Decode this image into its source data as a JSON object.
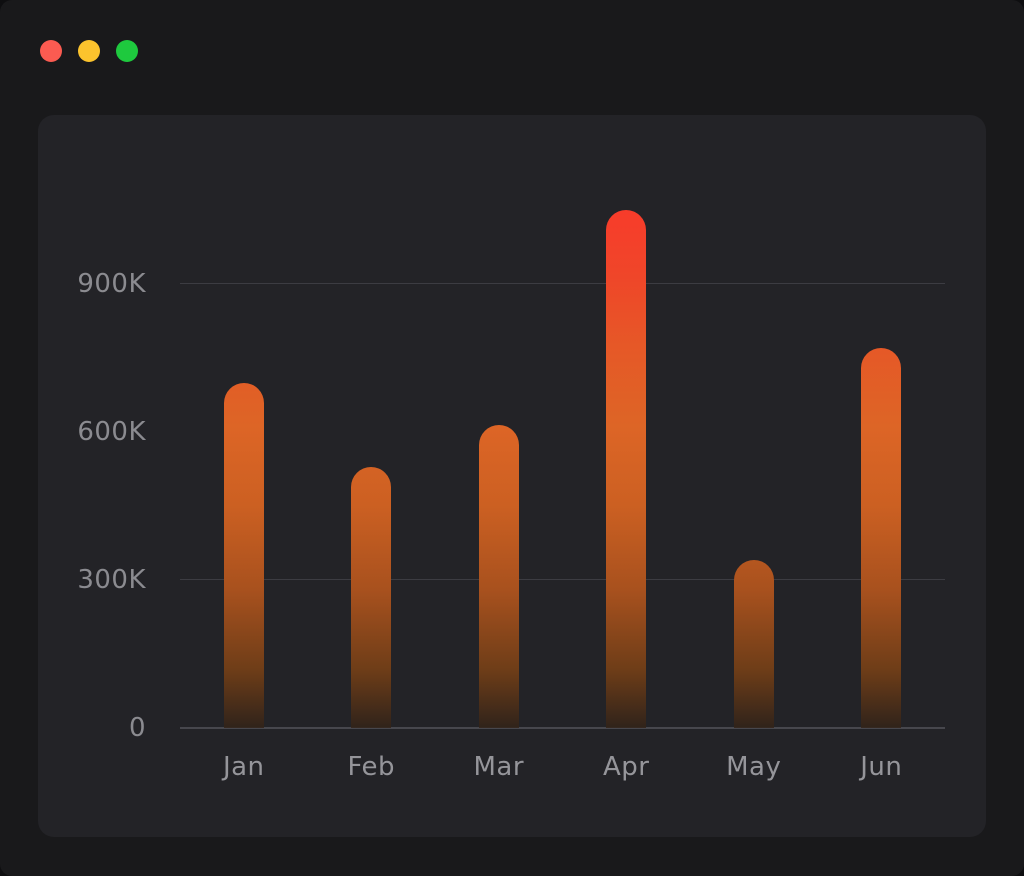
{
  "window": {
    "controls": [
      {
        "name": "close",
        "color": "#fb5b51"
      },
      {
        "name": "minimize",
        "color": "#fcc32d"
      },
      {
        "name": "zoom",
        "color": "#1ec93e"
      }
    ]
  },
  "chart_data": {
    "type": "bar",
    "title": "",
    "xlabel": "",
    "ylabel": "",
    "categories": [
      "Jan",
      "Feb",
      "Mar",
      "Apr",
      "May",
      "Jun"
    ],
    "values": [
      700000,
      530000,
      615000,
      1050000,
      340000,
      770000
    ],
    "y_axis": {
      "ticks": [
        {
          "label": "0",
          "value": 0
        },
        {
          "label": "300K",
          "value": 300000
        },
        {
          "label": "600K",
          "value": 600000
        },
        {
          "label": "900K",
          "value": 900000
        }
      ],
      "gridline_values": [
        300000,
        900000
      ],
      "max": 1130000
    },
    "legend": null,
    "grid": "horizontal-partial",
    "style": {
      "page_background": "#19191b",
      "panel_background": "#232327",
      "grid_color": "#3c3c42",
      "axis_color": "#47474d",
      "tick_label_color": "#8b8b90",
      "bar_gradient": [
        {
          "pos": 0.0,
          "color": "rgba(50,35,24,0.85)"
        },
        {
          "pos": 0.11,
          "color": "#6e3d18"
        },
        {
          "pos": 0.26,
          "color": "#a8511e"
        },
        {
          "pos": 0.42,
          "color": "#cc6022"
        },
        {
          "pos": 0.57,
          "color": "#dd6526"
        },
        {
          "pos": 0.72,
          "color": "#e65827"
        },
        {
          "pos": 0.85,
          "color": "#ef4629"
        },
        {
          "pos": 1.0,
          "color": "#f93a2b"
        }
      ]
    }
  }
}
